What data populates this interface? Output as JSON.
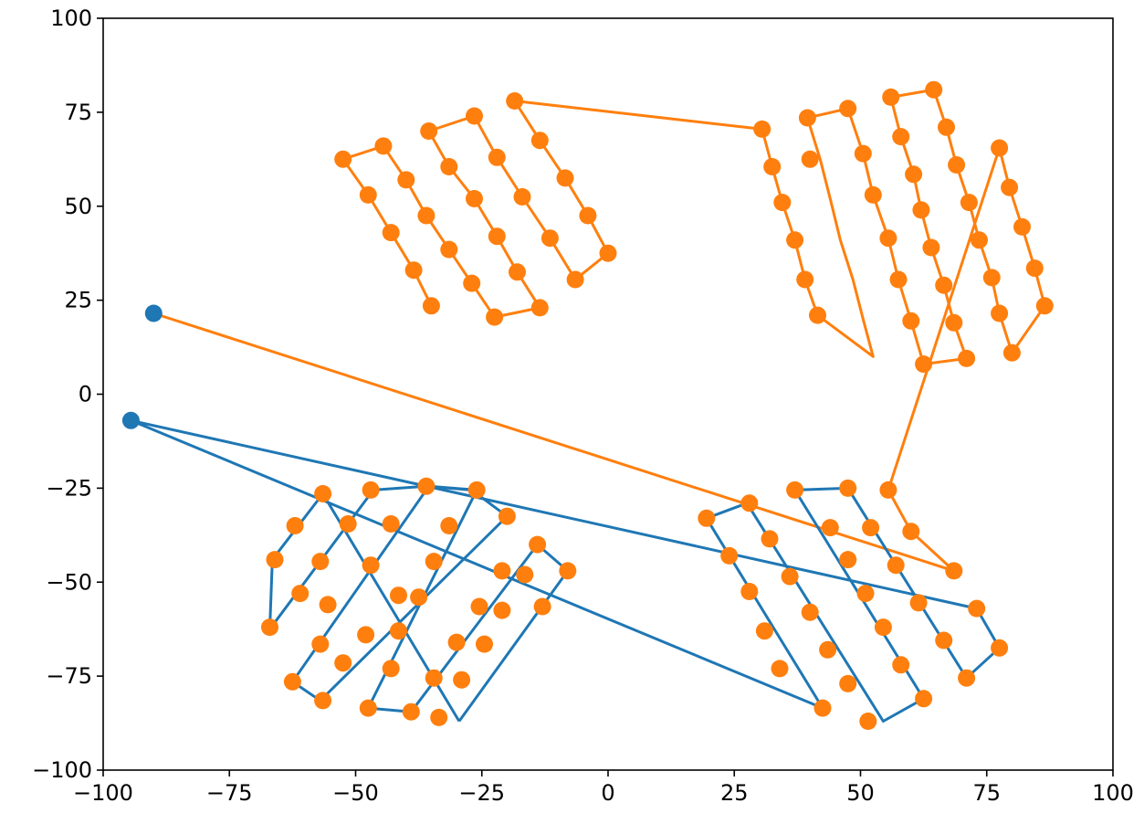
{
  "chart_data": {
    "type": "line",
    "title": "",
    "xlabel": "",
    "ylabel": "",
    "xlim": [
      -100,
      100
    ],
    "ylim": [
      -100,
      100
    ],
    "xticks": [
      -100,
      -75,
      -50,
      -25,
      0,
      25,
      50,
      75,
      100
    ],
    "yticks": [
      -100,
      -75,
      -50,
      -25,
      0,
      25,
      50,
      75,
      100
    ],
    "xtick_labels": [
      "−100",
      "−75",
      "−50",
      "−25",
      "0",
      "25",
      "50",
      "75",
      "100"
    ],
    "ytick_labels": [
      "−100",
      "−75",
      "−50",
      "−25",
      "0",
      "25",
      "50",
      "75",
      "100"
    ],
    "grid": false,
    "colors": {
      "blue": "#1f77b4",
      "orange": "#ff7f0e"
    },
    "points": [
      [
        -35,
        23.5
      ],
      [
        -38.5,
        33
      ],
      [
        -43,
        43
      ],
      [
        -47.5,
        53
      ],
      [
        -52.5,
        62.5
      ],
      [
        -44.5,
        66
      ],
      [
        -40,
        57
      ],
      [
        -36,
        47.5
      ],
      [
        -31.5,
        38.5
      ],
      [
        -27,
        29.5
      ],
      [
        -22.5,
        20.5
      ],
      [
        -13.5,
        23
      ],
      [
        -18,
        32.5
      ],
      [
        -22,
        42
      ],
      [
        -26.5,
        52
      ],
      [
        -31.5,
        60.5
      ],
      [
        -35.5,
        70
      ],
      [
        -26.5,
        74
      ],
      [
        -22,
        63
      ],
      [
        -17,
        52.5
      ],
      [
        -11.5,
        41.5
      ],
      [
        -6.5,
        30.5
      ],
      [
        0,
        37.5
      ],
      [
        -4,
        47.5
      ],
      [
        -8.5,
        57.5
      ],
      [
        -13.5,
        67.5
      ],
      [
        -18.5,
        78
      ],
      [
        30.5,
        70.5
      ],
      [
        32.5,
        60.5
      ],
      [
        34.5,
        51
      ],
      [
        37,
        41
      ],
      [
        39,
        30.5
      ],
      [
        41.5,
        21
      ],
      [
        40,
        62.5
      ],
      [
        39.5,
        73.5
      ],
      [
        47.5,
        76
      ],
      [
        50.5,
        64
      ],
      [
        52.5,
        53
      ],
      [
        55.5,
        41.5
      ],
      [
        57.5,
        30.5
      ],
      [
        60,
        19.5
      ],
      [
        62.5,
        8
      ],
      [
        71,
        9.5
      ],
      [
        68.5,
        19
      ],
      [
        66.5,
        29
      ],
      [
        64,
        39
      ],
      [
        62,
        49
      ],
      [
        60.5,
        58.5
      ],
      [
        58,
        68.5
      ],
      [
        56,
        79
      ],
      [
        64.5,
        81
      ],
      [
        67,
        71
      ],
      [
        69,
        61
      ],
      [
        71.5,
        51
      ],
      [
        73.5,
        41
      ],
      [
        76,
        31
      ],
      [
        77.5,
        21.5
      ],
      [
        80,
        11
      ],
      [
        86.5,
        23.5
      ],
      [
        84.5,
        33.5
      ],
      [
        82,
        44.5
      ],
      [
        79.5,
        55
      ],
      [
        77.5,
        65.5
      ],
      [
        55.5,
        -25.5
      ],
      [
        60,
        -36.5
      ],
      [
        68.5,
        -47
      ],
      [
        -47,
        -25.5
      ],
      [
        -36,
        -24.5
      ],
      [
        -26,
        -25.5
      ],
      [
        -20,
        -32.5
      ],
      [
        -14,
        -40
      ],
      [
        -8,
        -47
      ],
      [
        -13,
        -56.5
      ],
      [
        -16.5,
        -48
      ],
      [
        -21,
        -57.5
      ],
      [
        -24.5,
        -66.5
      ],
      [
        -29,
        -76
      ],
      [
        -33.5,
        -86
      ],
      [
        -39,
        -84.5
      ],
      [
        -34.5,
        -75.5
      ],
      [
        -30,
        -66
      ],
      [
        -25.5,
        -56.5
      ],
      [
        -21,
        -47
      ],
      [
        -43,
        -73
      ],
      [
        -48,
        -64
      ],
      [
        -41.5,
        -63
      ],
      [
        -37.5,
        -54
      ],
      [
        -34.5,
        -44.5
      ],
      [
        -31.5,
        -35
      ],
      [
        -47.5,
        -83.5
      ],
      [
        -52.5,
        -71.5
      ],
      [
        -57,
        -66.5
      ],
      [
        -62.5,
        -76.5
      ],
      [
        -61,
        -53
      ],
      [
        -66,
        -44
      ],
      [
        -67,
        -62
      ],
      [
        -62,
        -35
      ],
      [
        -56.5,
        -26.5
      ],
      [
        -51.5,
        -34.5
      ],
      [
        -55.5,
        -56
      ],
      [
        -57,
        -44.5
      ],
      [
        -56.5,
        -81.5
      ],
      [
        -47,
        -45.5
      ],
      [
        -43,
        -34.5
      ],
      [
        -41.5,
        -53.5
      ],
      [
        19.5,
        -33
      ],
      [
        28,
        -29
      ],
      [
        32,
        -38.5
      ],
      [
        36,
        -48.5
      ],
      [
        40,
        -58
      ],
      [
        43.5,
        -68
      ],
      [
        47.5,
        -77
      ],
      [
        51.5,
        -87
      ],
      [
        62.5,
        -81
      ],
      [
        58,
        -72
      ],
      [
        54.5,
        -62
      ],
      [
        51,
        -53
      ],
      [
        47.5,
        -44
      ],
      [
        44,
        -35.5
      ],
      [
        37,
        -25.5
      ],
      [
        47.5,
        -25
      ],
      [
        52,
        -35.5
      ],
      [
        57,
        -45.5
      ],
      [
        61.5,
        -55.5
      ],
      [
        66.5,
        -65.5
      ],
      [
        71,
        -75.5
      ],
      [
        77.5,
        -67.5
      ],
      [
        73,
        -57
      ],
      [
        42.5,
        -83.5
      ],
      [
        34,
        -73
      ],
      [
        31,
        -63
      ],
      [
        28,
        -52.5
      ],
      [
        24,
        -43
      ]
    ],
    "series": [
      {
        "color": "#ff7f0e",
        "start": [
          -90,
          21.5
        ],
        "path": [
          [
            -35,
            23.5
          ],
          [
            -38.5,
            33
          ],
          [
            -43,
            43
          ],
          [
            -47.5,
            53
          ],
          [
            -52.5,
            62.5
          ],
          [
            -44.5,
            66
          ],
          [
            -40,
            57
          ],
          [
            -36,
            47.5
          ],
          [
            -31.5,
            38.5
          ],
          [
            -27,
            29.5
          ],
          [
            -22.5,
            20.5
          ],
          [
            -13.5,
            23
          ],
          [
            -18,
            32.5
          ],
          [
            -22,
            42
          ],
          [
            -26.5,
            52
          ],
          [
            -31.5,
            60.5
          ],
          [
            -35.5,
            70
          ],
          [
            -26.5,
            74
          ],
          [
            -22,
            63
          ],
          [
            -17,
            52.5
          ],
          [
            -11.5,
            41.5
          ],
          [
            -6.5,
            30.5
          ],
          [
            0,
            37.5
          ],
          [
            -4,
            47.5
          ],
          [
            -8.5,
            57.5
          ],
          [
            -13.5,
            67.5
          ],
          [
            -18.5,
            78
          ],
          [
            30.5,
            70.5
          ],
          [
            32.5,
            60.5
          ],
          [
            34.5,
            51
          ],
          [
            37,
            41
          ],
          [
            39,
            30.5
          ],
          [
            41.5,
            21
          ],
          [
            52.5,
            10
          ],
          [
            50.5,
            20
          ],
          [
            48.5,
            30.5
          ],
          [
            46,
            41
          ],
          [
            44,
            52
          ],
          [
            42,
            62.5
          ],
          [
            39.5,
            73.5
          ],
          [
            47.5,
            76
          ],
          [
            50.5,
            64
          ],
          [
            52.5,
            53
          ],
          [
            55.5,
            41.5
          ],
          [
            57.5,
            30.5
          ],
          [
            60,
            19.5
          ],
          [
            62.5,
            8
          ],
          [
            71,
            9.5
          ],
          [
            68.5,
            19
          ],
          [
            66.5,
            29
          ],
          [
            64,
            39
          ],
          [
            62,
            49
          ],
          [
            60.5,
            58.5
          ],
          [
            58,
            68.5
          ],
          [
            56,
            79
          ],
          [
            64.5,
            81
          ],
          [
            67,
            71
          ],
          [
            69,
            61
          ],
          [
            71.5,
            51
          ],
          [
            73.5,
            41
          ],
          [
            76,
            31
          ],
          [
            77.5,
            21.5
          ],
          [
            80,
            11
          ],
          [
            86.5,
            23.5
          ],
          [
            84.5,
            33.5
          ],
          [
            82,
            44.5
          ],
          [
            79.5,
            55
          ],
          [
            77.5,
            65.5
          ],
          [
            55.5,
            -25.5
          ],
          [
            60,
            -36.5
          ],
          [
            68.5,
            -47
          ],
          [
            -90,
            21.5
          ]
        ]
      },
      {
        "color": "#1f77b4",
        "start": [
          -94.5,
          -7
        ],
        "path": [
          [
            -94.5,
            -7
          ],
          [
            73,
            -57
          ],
          [
            77.5,
            -67.5
          ],
          [
            71,
            -75.5
          ],
          [
            47.5,
            -25
          ],
          [
            37,
            -25.5
          ],
          [
            62.5,
            -81
          ],
          [
            54.5,
            -87
          ],
          [
            27.5,
            -29
          ],
          [
            19.5,
            -33
          ],
          [
            42.5,
            -83.5
          ],
          [
            -94.5,
            -7
          ]
        ]
      },
      {
        "color": "#1f77b4",
        "path": [
          [
            -29.5,
            -87
          ],
          [
            -8,
            -47
          ],
          [
            -14,
            -40
          ],
          [
            -39,
            -84.5
          ],
          [
            -47.5,
            -83.5
          ],
          [
            -26,
            -25.5
          ],
          [
            -35.5,
            -24.5
          ],
          [
            -62.5,
            -76.5
          ],
          [
            -57,
            -81.5
          ],
          [
            -20,
            -32.5
          ],
          [
            -27,
            -25.5
          ],
          [
            -36,
            -24.5
          ],
          [
            -46.5,
            -25.5
          ],
          [
            -67,
            -62.5
          ],
          [
            -66.5,
            -44
          ],
          [
            -56.5,
            -26.5
          ],
          [
            -29.5,
            -87
          ]
        ]
      }
    ]
  }
}
